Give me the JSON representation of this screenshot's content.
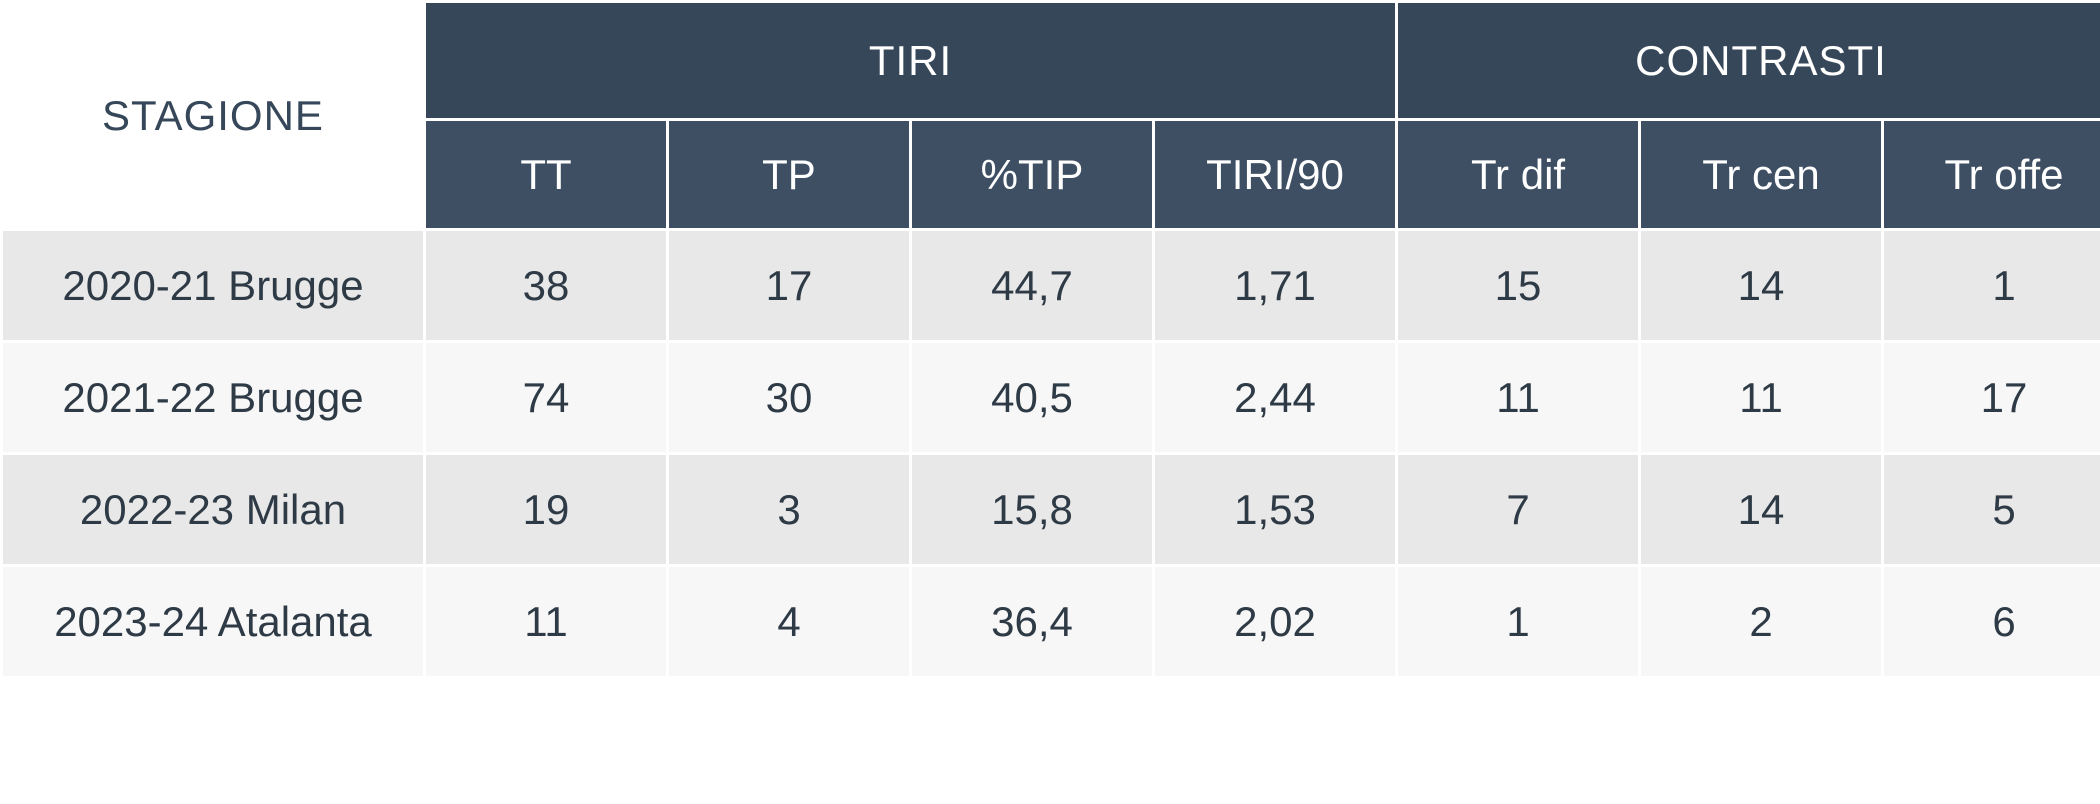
{
  "table": {
    "header_bg": "#36475a",
    "subheader_bg": "#3e4f63",
    "header_text_color": "#ffffff",
    "row_odd_bg": "#e8e8e8",
    "row_even_bg": "#f7f7f7",
    "body_text_color": "#2e3a45",
    "season_header": "STAGIONE",
    "groups": [
      {
        "label": "TIRI",
        "span": 4
      },
      {
        "label": "CONTRASTI",
        "span": 3
      }
    ],
    "subheaders": [
      "TT",
      "TP",
      "%TIP",
      "TIRI/90",
      "Tr dif",
      "Tr cen",
      "Tr offe"
    ],
    "rows": [
      {
        "season": "2020-21 Brugge",
        "values": [
          "38",
          "17",
          "44,7",
          "1,71",
          "15",
          "14",
          "1"
        ]
      },
      {
        "season": "2021-22 Brugge",
        "values": [
          "74",
          "30",
          "40,5",
          "2,44",
          "11",
          "11",
          "17"
        ]
      },
      {
        "season": "2022-23 Milan",
        "values": [
          "19",
          "3",
          "15,8",
          "1,53",
          "7",
          "14",
          "5"
        ]
      },
      {
        "season": "2023-24 Atalanta",
        "values": [
          "11",
          "4",
          "36,4",
          "2,02",
          "1",
          "2",
          "6"
        ]
      }
    ]
  }
}
